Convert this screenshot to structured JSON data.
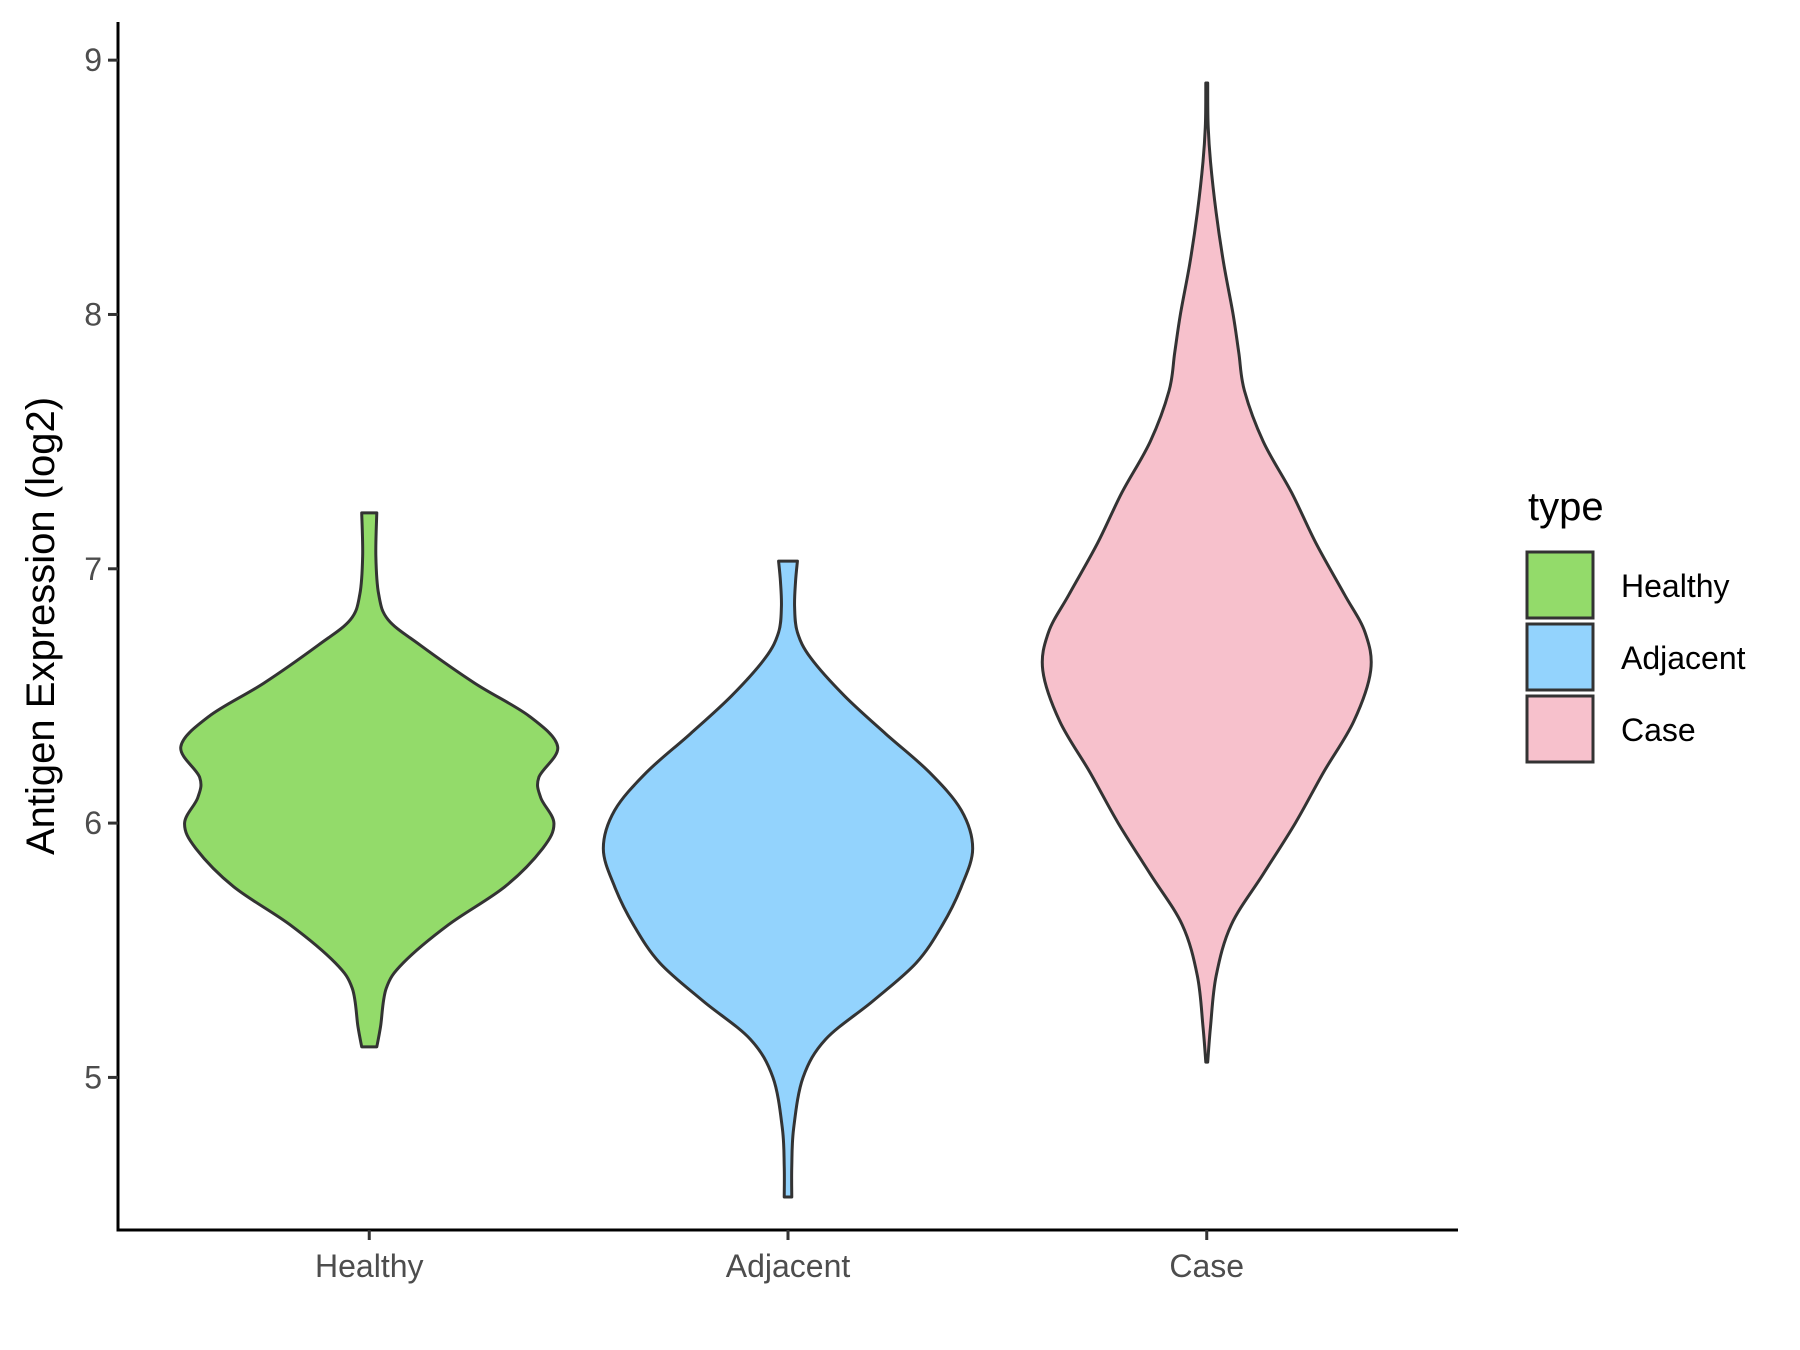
{
  "chart_data": {
    "type": "violin",
    "title": "",
    "xlabel": "",
    "ylabel": "Antigen Expression (log2)",
    "categories": [
      "Healthy",
      "Adjacent",
      "Case"
    ],
    "y_ticks": [
      5,
      6,
      7,
      8,
      9
    ],
    "ylim": [
      4.4,
      9.15
    ],
    "grid": false,
    "legend": {
      "title": "type",
      "position": "right",
      "entries": [
        {
          "label": "Healthy",
          "color": "#93DB6A"
        },
        {
          "label": "Adjacent",
          "color": "#93D3FD"
        },
        {
          "label": "Case",
          "color": "#F7C1CC"
        }
      ]
    },
    "series": [
      {
        "category": "Healthy",
        "color": "#93DB6A",
        "y_min": 5.12,
        "y_max": 7.22,
        "density_profile": [
          [
            5.12,
            0.04
          ],
          [
            5.2,
            0.06
          ],
          [
            5.35,
            0.09
          ],
          [
            5.45,
            0.18
          ],
          [
            5.6,
            0.42
          ],
          [
            5.75,
            0.72
          ],
          [
            5.9,
            0.92
          ],
          [
            6.0,
            0.98
          ],
          [
            6.1,
            0.91
          ],
          [
            6.18,
            0.9
          ],
          [
            6.3,
            1.0
          ],
          [
            6.42,
            0.85
          ],
          [
            6.55,
            0.56
          ],
          [
            6.7,
            0.27
          ],
          [
            6.8,
            0.1
          ],
          [
            6.9,
            0.05
          ],
          [
            7.05,
            0.035
          ],
          [
            7.22,
            0.04
          ]
        ]
      },
      {
        "category": "Adjacent",
        "color": "#93D3FD",
        "y_min": 4.53,
        "y_max": 7.03,
        "density_profile": [
          [
            4.53,
            0.02
          ],
          [
            4.65,
            0.02
          ],
          [
            4.8,
            0.03
          ],
          [
            5.0,
            0.08
          ],
          [
            5.15,
            0.2
          ],
          [
            5.3,
            0.45
          ],
          [
            5.45,
            0.68
          ],
          [
            5.6,
            0.82
          ],
          [
            5.75,
            0.92
          ],
          [
            5.9,
            0.98
          ],
          [
            6.05,
            0.92
          ],
          [
            6.2,
            0.75
          ],
          [
            6.35,
            0.52
          ],
          [
            6.5,
            0.3
          ],
          [
            6.65,
            0.12
          ],
          [
            6.75,
            0.05
          ],
          [
            6.85,
            0.035
          ],
          [
            6.95,
            0.04
          ],
          [
            7.03,
            0.05
          ]
        ]
      },
      {
        "category": "Case",
        "color": "#F7C1CC",
        "y_min": 5.06,
        "y_max": 8.91,
        "density_profile": [
          [
            5.06,
            0.005
          ],
          [
            5.2,
            0.02
          ],
          [
            5.4,
            0.05
          ],
          [
            5.6,
            0.13
          ],
          [
            5.8,
            0.3
          ],
          [
            6.0,
            0.47
          ],
          [
            6.2,
            0.62
          ],
          [
            6.4,
            0.78
          ],
          [
            6.6,
            0.87
          ],
          [
            6.75,
            0.84
          ],
          [
            6.9,
            0.73
          ],
          [
            7.1,
            0.58
          ],
          [
            7.3,
            0.45
          ],
          [
            7.5,
            0.3
          ],
          [
            7.7,
            0.2
          ],
          [
            7.85,
            0.17
          ],
          [
            8.0,
            0.14
          ],
          [
            8.2,
            0.09
          ],
          [
            8.4,
            0.05
          ],
          [
            8.6,
            0.02
          ],
          [
            8.75,
            0.007
          ],
          [
            8.91,
            0.005
          ]
        ]
      }
    ]
  }
}
